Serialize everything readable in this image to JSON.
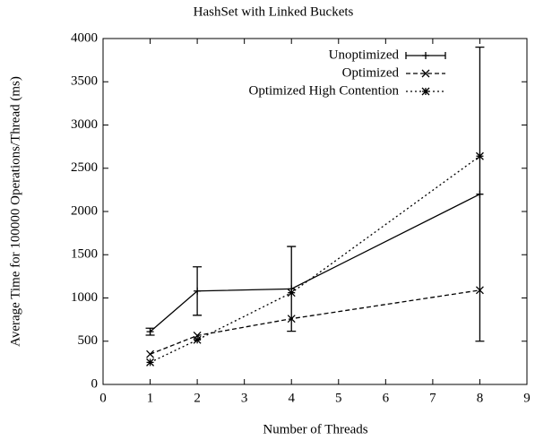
{
  "chart_data": {
    "type": "line",
    "title": "HashSet with Linked Buckets",
    "xlabel": "Number of Threads",
    "ylabel": "Average Time for 100000 Operations/Thread (ms)",
    "x": [
      1,
      2,
      4,
      8
    ],
    "series": [
      {
        "name": "Unoptimized",
        "color": "#000000",
        "values": [
          610,
          1080,
          1105,
          2200
        ],
        "errors": [
          40,
          280,
          490,
          1700
        ]
      },
      {
        "name": "Optimized",
        "color": "#000000",
        "values": [
          350,
          565,
          760,
          1090
        ]
      },
      {
        "name": "Optimized High Contention",
        "color": "#000000",
        "values": [
          255,
          515,
          1060,
          2640
        ]
      }
    ],
    "xlim": [
      0,
      9
    ],
    "xticks": [
      0,
      1,
      2,
      3,
      4,
      5,
      6,
      7,
      8,
      9
    ],
    "ylim": [
      0,
      4000
    ],
    "yticks": [
      0,
      500,
      1000,
      1500,
      2000,
      2500,
      3000,
      3500,
      4000
    ],
    "legend": "upper right"
  }
}
